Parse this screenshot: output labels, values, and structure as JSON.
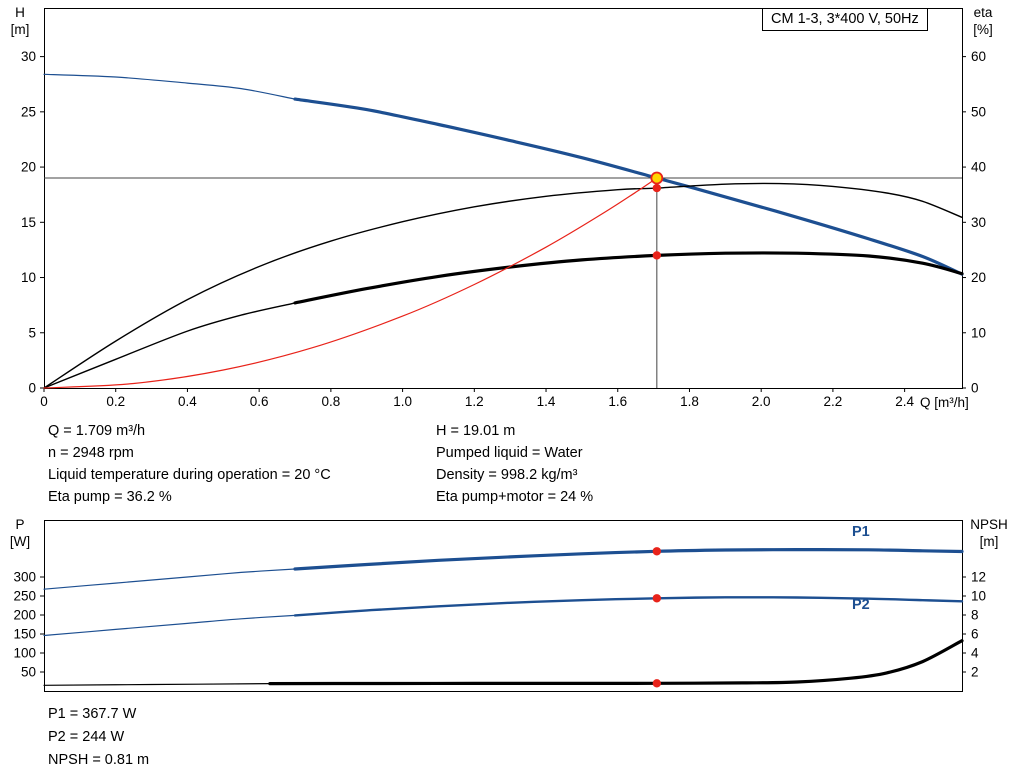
{
  "title_box": "CM 1-3, 3*400 V, 50Hz",
  "colors": {
    "curve_blue": "#1d4f91",
    "curve_black": "#000000",
    "curve_red": "#e8231a",
    "marker_red": "#e8231a",
    "marker_yellow": "#ffd500",
    "ref_line": "#444444"
  },
  "top_info": {
    "left": [
      "Q = 1.709 m³/h",
      "n = 2948 rpm",
      "Liquid temperature during operation = 20 °C",
      "Eta pump = 36.2 %"
    ],
    "right": [
      "H = 19.01 m",
      "Pumped liquid = Water",
      "Density = 998.2 kg/m³",
      "Eta pump+motor = 24 %"
    ]
  },
  "bottom_info": [
    "P1 = 367.7 W",
    "P2 = 244 W",
    "NPSH = 0.81 m"
  ],
  "chart_data": [
    {
      "type": "line",
      "name": "hq-eta-chart",
      "title": "CM 1-3, 3*400 V, 50Hz",
      "grid": false,
      "x_axis": {
        "min": 0,
        "max": 2.56,
        "label": "Q [m³/h]",
        "ticks": [
          "0",
          "0.2",
          "0.4",
          "0.6",
          "0.8",
          "1.0",
          "1.2",
          "1.4",
          "1.6",
          "1.8",
          "2.0",
          "2.2",
          "2.4"
        ]
      },
      "y_left": {
        "title_line1": "H",
        "title_line2": "[m]",
        "min": 0,
        "max": 34.4,
        "ticks": [
          0,
          5,
          10,
          15,
          20,
          25,
          30
        ]
      },
      "y_right": {
        "title_line1": "eta",
        "title_line2": "[%]",
        "min": 0,
        "max": 68.8,
        "ticks": [
          0,
          10,
          20,
          30,
          40,
          50,
          60
        ]
      },
      "series": [
        {
          "name": "head-curve-preview",
          "axis": "left",
          "color": "#1d4f91",
          "width": 1.2,
          "points": [
            [
              0,
              28.4
            ],
            [
              0.2,
              28.15
            ],
            [
              0.4,
              27.6
            ],
            [
              0.55,
              27.1
            ],
            [
              0.7,
              26.15
            ]
          ]
        },
        {
          "name": "head-curve",
          "axis": "left",
          "color": "#1d4f91",
          "width": 3.2,
          "points": [
            [
              0.7,
              26.15
            ],
            [
              0.9,
              25.2
            ],
            [
              1.1,
              23.85
            ],
            [
              1.3,
              22.4
            ],
            [
              1.5,
              20.85
            ],
            [
              1.709,
              19.01
            ],
            [
              1.9,
              17.3
            ],
            [
              2.1,
              15.45
            ],
            [
              2.3,
              13.5
            ],
            [
              2.45,
              11.9
            ],
            [
              2.56,
              10.3
            ]
          ]
        },
        {
          "name": "eta-pump-curve",
          "axis": "right",
          "color": "#000000",
          "width": 1.4,
          "points": [
            [
              0,
              0
            ],
            [
              0.2,
              8.5
            ],
            [
              0.4,
              16
            ],
            [
              0.6,
              22
            ],
            [
              0.8,
              26.6
            ],
            [
              1.0,
              30.1
            ],
            [
              1.2,
              32.8
            ],
            [
              1.4,
              34.7
            ],
            [
              1.6,
              35.9
            ],
            [
              1.709,
              36.2
            ],
            [
              1.9,
              36.9
            ],
            [
              2.05,
              37
            ],
            [
              2.2,
              36.5
            ],
            [
              2.35,
              35.3
            ],
            [
              2.45,
              33.8
            ],
            [
              2.56,
              30.9
            ]
          ]
        },
        {
          "name": "eta-pump-motor-curve-preview",
          "axis": "right",
          "color": "#000000",
          "width": 1.4,
          "points": [
            [
              0,
              0
            ],
            [
              0.2,
              5.2
            ],
            [
              0.4,
              10.3
            ],
            [
              0.55,
              13.2
            ],
            [
              0.7,
              15.4
            ]
          ]
        },
        {
          "name": "eta-pump-motor-curve",
          "axis": "right",
          "color": "#000000",
          "width": 3.2,
          "points": [
            [
              0.7,
              15.4
            ],
            [
              0.9,
              18.0
            ],
            [
              1.1,
              20.2
            ],
            [
              1.3,
              21.9
            ],
            [
              1.5,
              23.2
            ],
            [
              1.709,
              24.0
            ],
            [
              1.9,
              24.4
            ],
            [
              2.1,
              24.4
            ],
            [
              2.3,
              23.9
            ],
            [
              2.45,
              22.6
            ],
            [
              2.56,
              20.7
            ]
          ]
        },
        {
          "name": "system-curve",
          "axis": "left",
          "color": "#e8231a",
          "width": 1.2,
          "points": [
            [
              0,
              0
            ],
            [
              0.25,
              0.41
            ],
            [
              0.5,
              1.63
            ],
            [
              0.75,
              3.66
            ],
            [
              1.0,
              6.51
            ],
            [
              1.2,
              9.37
            ],
            [
              1.4,
              12.75
            ],
            [
              1.55,
              15.63
            ],
            [
              1.65,
              17.72
            ],
            [
              1.709,
              19.01
            ]
          ]
        }
      ],
      "ref_lines": [
        {
          "name": "duty-head-line",
          "orient": "h",
          "value": 19.01,
          "axis": "left",
          "from": 0,
          "to": 2.56,
          "color": "#444444",
          "width": 1
        },
        {
          "name": "duty-flow-line",
          "orient": "v",
          "value": 1.709,
          "axis": "left",
          "from": 0,
          "to": 19.01,
          "color": "#444444",
          "width": 1
        }
      ],
      "markers": [
        {
          "name": "duty-point-marker",
          "x": 1.709,
          "y": 19.01,
          "axis": "left",
          "r": 5.5,
          "fill": "#ffd500",
          "stroke": "#e8231a",
          "interactable": true
        },
        {
          "name": "eta-pump-duty-dot",
          "x": 1.709,
          "y": 36.2,
          "axis": "right",
          "r": 4.2,
          "fill": "#e8231a"
        },
        {
          "name": "eta-pump-motor-duty-dot",
          "x": 1.709,
          "y": 24.0,
          "axis": "right",
          "r": 4.2,
          "fill": "#e8231a"
        }
      ]
    },
    {
      "type": "line",
      "name": "power-npsh-chart",
      "grid": false,
      "x_axis": {
        "min": 0,
        "max": 2.56,
        "label": "",
        "ticks": []
      },
      "y_left": {
        "title_line1": "P",
        "title_line2": "[W]",
        "min": 0,
        "max": 450,
        "ticks": [
          50,
          100,
          150,
          200,
          250,
          300
        ]
      },
      "y_right": {
        "title_line1": "NPSH",
        "title_line2": "[m]",
        "min": 0,
        "max": 18,
        "ticks": [
          2,
          4,
          6,
          8,
          10,
          12
        ]
      },
      "curve_labels": [
        "P1",
        "P2"
      ],
      "series": [
        {
          "name": "p1-curve-preview",
          "axis": "left",
          "color": "#1d4f91",
          "width": 1.2,
          "points": [
            [
              0,
              268
            ],
            [
              0.2,
              284
            ],
            [
              0.4,
              300
            ],
            [
              0.55,
              312
            ],
            [
              0.7,
              321
            ]
          ]
        },
        {
          "name": "p1-curve",
          "axis": "left",
          "color": "#1d4f91",
          "width": 3.2,
          "points": [
            [
              0.7,
              321
            ],
            [
              0.9,
              333
            ],
            [
              1.1,
              344
            ],
            [
              1.3,
              353
            ],
            [
              1.5,
              361
            ],
            [
              1.709,
              367.7
            ],
            [
              1.9,
              371
            ],
            [
              2.1,
              372
            ],
            [
              2.3,
              371.5
            ],
            [
              2.45,
              369
            ],
            [
              2.56,
              367
            ]
          ]
        },
        {
          "name": "p2-curve-preview",
          "axis": "left",
          "color": "#1d4f91",
          "width": 1.2,
          "points": [
            [
              0,
              146
            ],
            [
              0.2,
              162
            ],
            [
              0.4,
              178
            ],
            [
              0.55,
              190
            ],
            [
              0.7,
              199
            ]
          ]
        },
        {
          "name": "p2-curve",
          "axis": "left",
          "color": "#1d4f91",
          "width": 2.4,
          "points": [
            [
              0.7,
              199
            ],
            [
              0.9,
              212
            ],
            [
              1.1,
              223
            ],
            [
              1.3,
              232
            ],
            [
              1.5,
              239
            ],
            [
              1.709,
              244
            ],
            [
              1.9,
              246.5
            ],
            [
              2.1,
              246
            ],
            [
              2.3,
              243
            ],
            [
              2.45,
              239
            ],
            [
              2.56,
              236
            ]
          ]
        },
        {
          "name": "npsh-curve-preview",
          "axis": "right",
          "color": "#000000",
          "width": 1.2,
          "points": [
            [
              0,
              0.6
            ],
            [
              0.3,
              0.68
            ],
            [
              0.63,
              0.78
            ]
          ]
        },
        {
          "name": "npsh-curve",
          "axis": "right",
          "color": "#000000",
          "width": 3.2,
          "points": [
            [
              0.63,
              0.78
            ],
            [
              0.9,
              0.79
            ],
            [
              1.2,
              0.8
            ],
            [
              1.5,
              0.8
            ],
            [
              1.709,
              0.81
            ],
            [
              1.95,
              0.85
            ],
            [
              2.1,
              0.95
            ],
            [
              2.25,
              1.35
            ],
            [
              2.35,
              1.9
            ],
            [
              2.45,
              3.1
            ],
            [
              2.56,
              5.3
            ]
          ]
        }
      ],
      "ref_lines": [],
      "markers": [
        {
          "name": "p1-duty-dot",
          "x": 1.709,
          "y": 367.7,
          "axis": "left",
          "r": 4.2,
          "fill": "#e8231a"
        },
        {
          "name": "p2-duty-dot",
          "x": 1.709,
          "y": 244,
          "axis": "left",
          "r": 4.2,
          "fill": "#e8231a"
        },
        {
          "name": "npsh-duty-dot",
          "x": 1.709,
          "y": 0.81,
          "axis": "right",
          "r": 4.2,
          "fill": "#e8231a"
        }
      ]
    }
  ]
}
